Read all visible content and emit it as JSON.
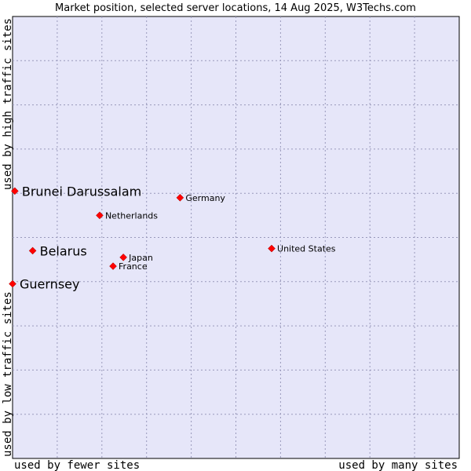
{
  "chart_data": {
    "type": "scatter",
    "title": "Market position, selected server locations, 14 Aug 2025, W3Techs.com",
    "xlabel_left": "used by fewer sites",
    "xlabel_right": "used by many sites",
    "ylabel_bottom": "used by low traffic sites",
    "ylabel_top": "used by high traffic sites",
    "xlim": [
      0,
      10
    ],
    "ylim": [
      0,
      10
    ],
    "grid": true,
    "colors": {
      "plot_background": "#e6e6f9",
      "grid": "#9999bb",
      "point": "#ff0000",
      "frame": "#000000"
    },
    "points": [
      {
        "label": "Brunei Darussalam",
        "x": 0.05,
        "y": 6.05,
        "emphasis": true
      },
      {
        "label": "Belarus",
        "x": 0.45,
        "y": 4.7,
        "emphasis": true
      },
      {
        "label": "Guernsey",
        "x": 0.0,
        "y": 3.95,
        "emphasis": true
      },
      {
        "label": "Netherlands",
        "x": 1.95,
        "y": 5.5,
        "emphasis": false
      },
      {
        "label": "Germany",
        "x": 3.75,
        "y": 5.9,
        "emphasis": false
      },
      {
        "label": "Japan",
        "x": 2.48,
        "y": 4.55,
        "emphasis": false
      },
      {
        "label": "France",
        "x": 2.25,
        "y": 4.35,
        "emphasis": false
      },
      {
        "label": "United States",
        "x": 5.8,
        "y": 4.75,
        "emphasis": false
      }
    ]
  }
}
